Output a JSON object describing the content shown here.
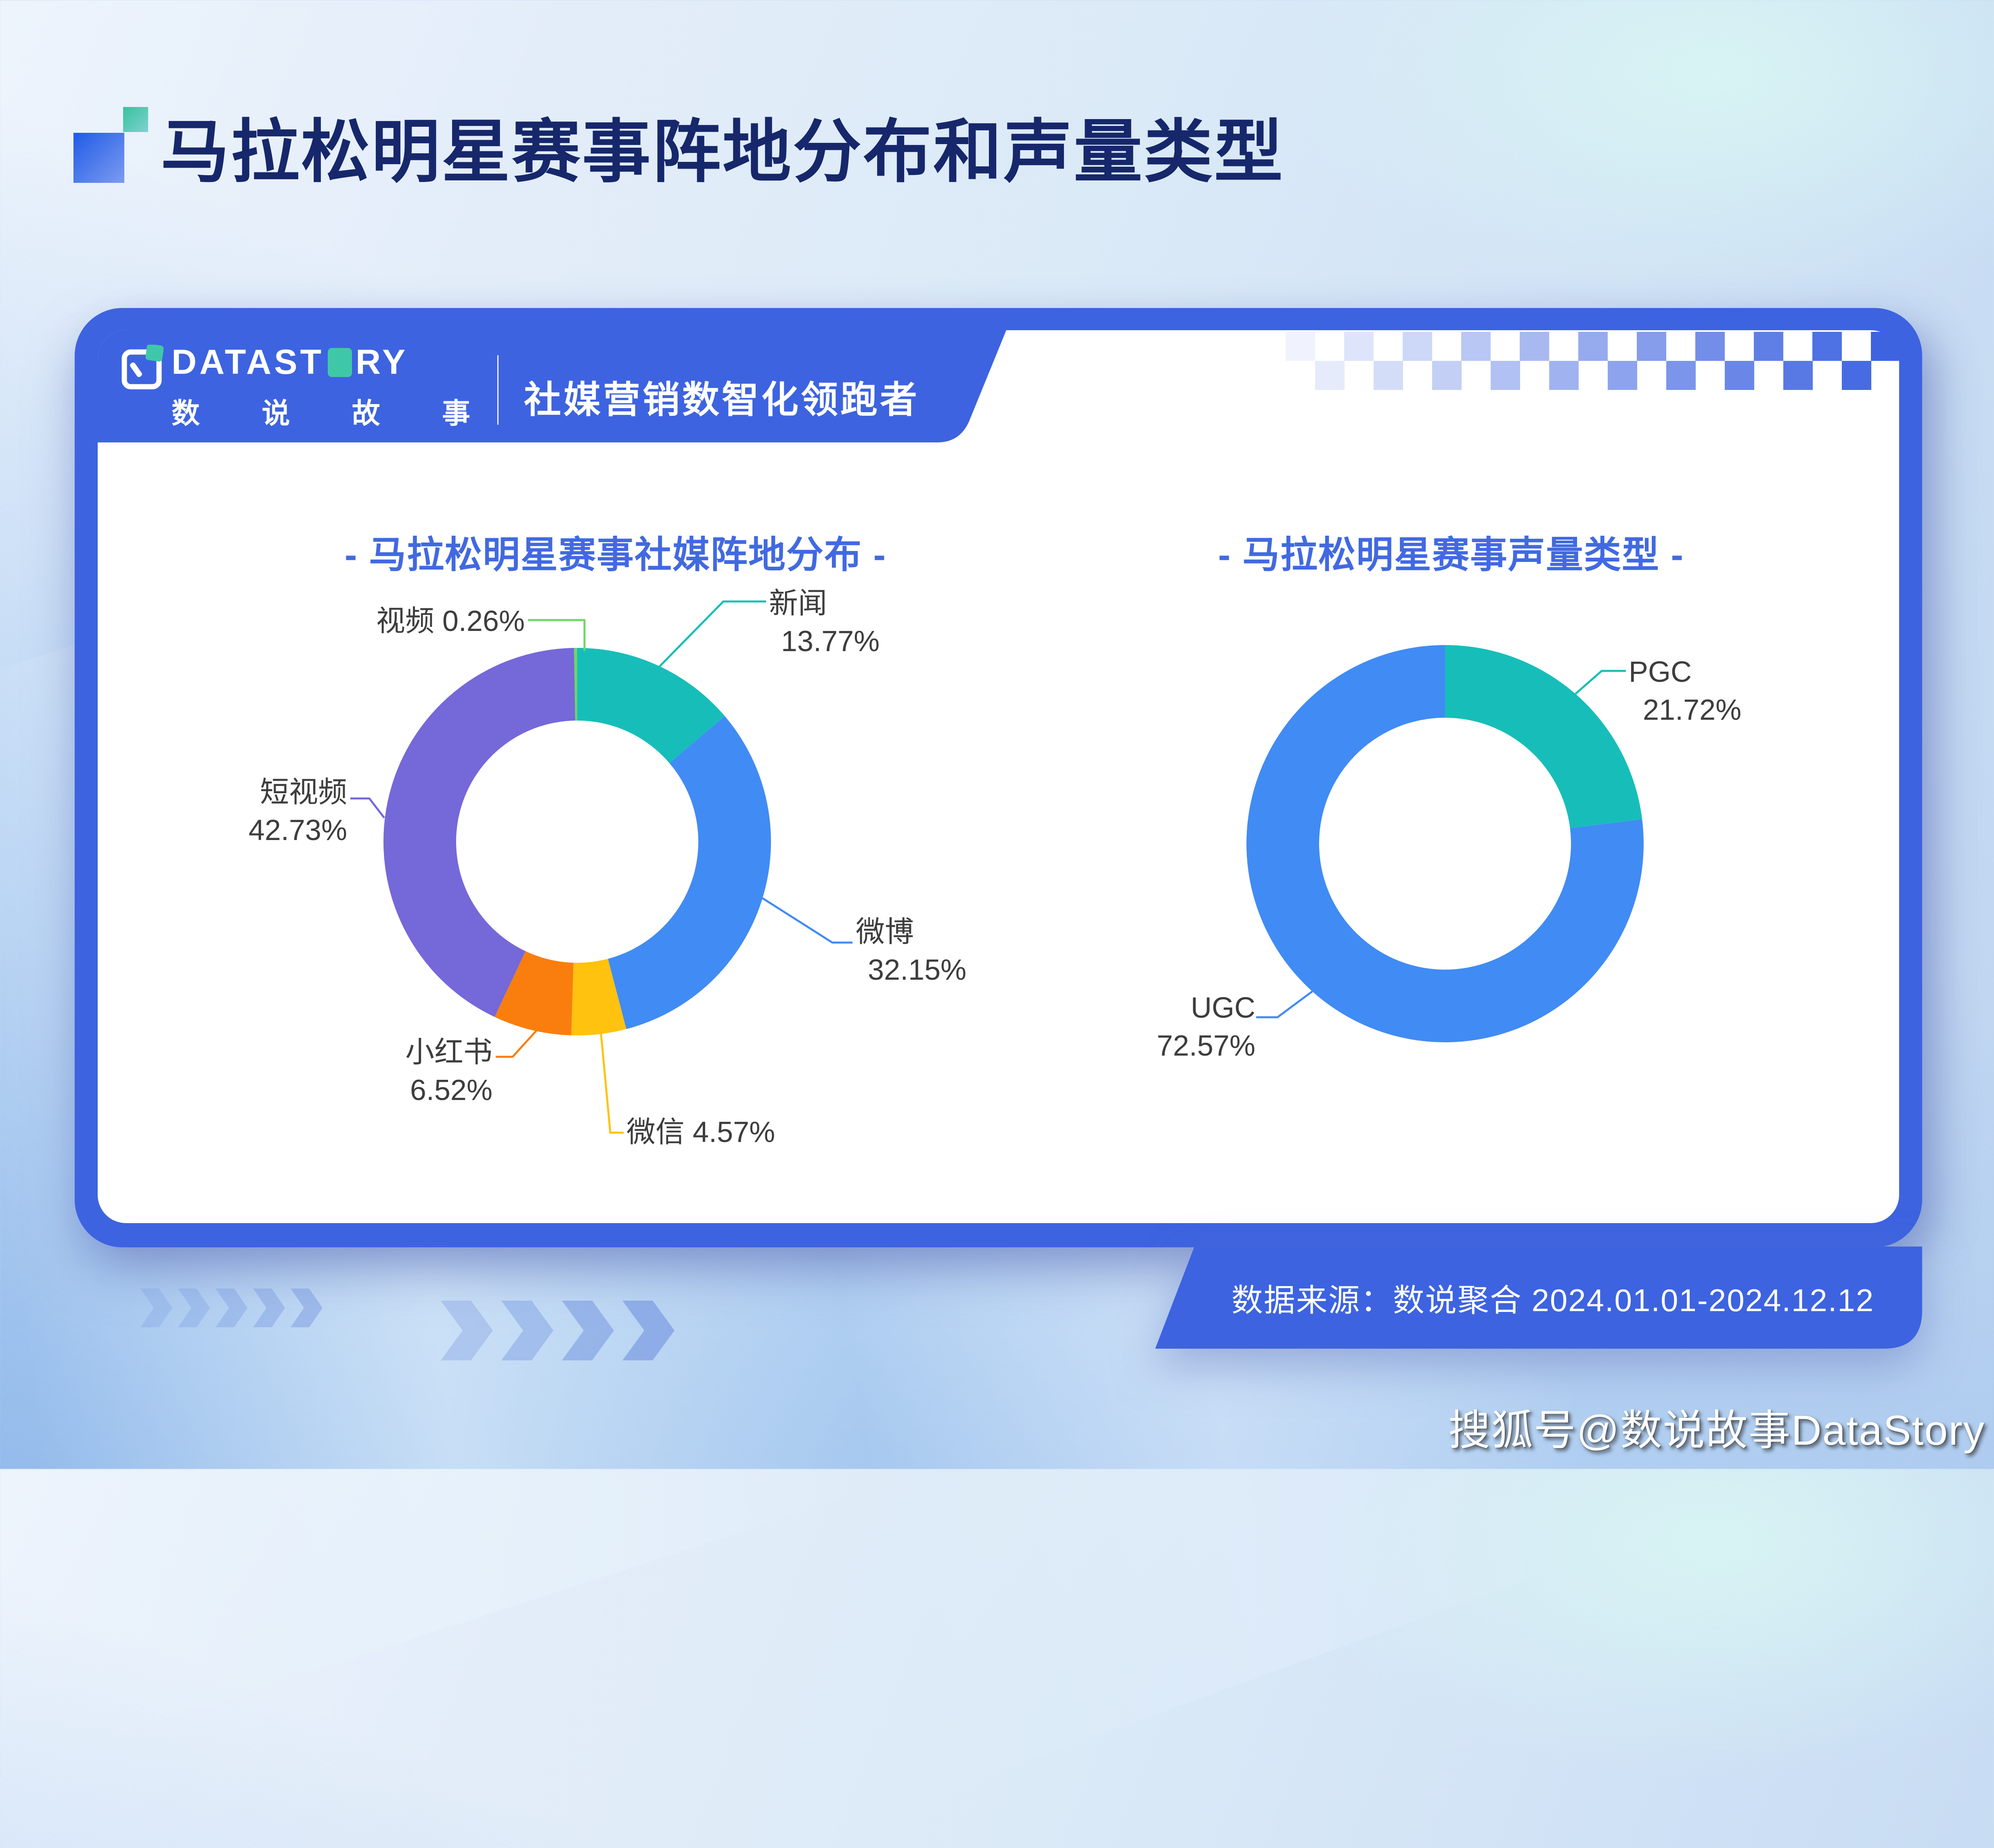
{
  "page_title": "马拉松明星赛事阵地分布和声量类型",
  "brand": {
    "wordmark_pre": "DATAST",
    "wordmark_post": "RY",
    "cn_name": "数说故事",
    "tagline": "社媒营销数智化领跑者"
  },
  "footer": {
    "source": "数据来源：数说聚合 2024.01.01-2024.12.12"
  },
  "watermark": "搜狐号@数说故事DataStory",
  "colors": {
    "card_blue": "#3D63E0",
    "title_navy": "#16276B",
    "chart_title_blue": "#4169E1",
    "label_gray": "#3D3D3D",
    "chevron_blue": "#6F8FDE"
  },
  "chart_data": [
    {
      "type": "pie",
      "variant": "donut",
      "title": "- 马拉松明星赛事社媒阵地分布 -",
      "start_angle": "top",
      "direction": "clockwise",
      "legend": "none",
      "items": [
        {
          "label": "新闻",
          "value": 13.77,
          "color": "#17BEB9"
        },
        {
          "label": "微博",
          "value": 32.15,
          "color": "#418BF4"
        },
        {
          "label": "微信",
          "value": 4.57,
          "color": "#FFC20E"
        },
        {
          "label": "小红书",
          "value": 6.52,
          "color": "#F97E0E"
        },
        {
          "label": "短视频",
          "value": 42.73,
          "color": "#7568D9"
        },
        {
          "label": "视频",
          "value": 0.26,
          "color": "#6FD566"
        }
      ]
    },
    {
      "type": "pie",
      "variant": "donut",
      "title": "- 马拉松明星赛事声量类型 -",
      "start_angle": "top",
      "direction": "clockwise",
      "legend": "none",
      "items": [
        {
          "label": "PGC",
          "value": 21.72,
          "color": "#17BEB9"
        },
        {
          "label": "UGC",
          "value": 72.57,
          "color": "#418BF4"
        }
      ]
    }
  ]
}
